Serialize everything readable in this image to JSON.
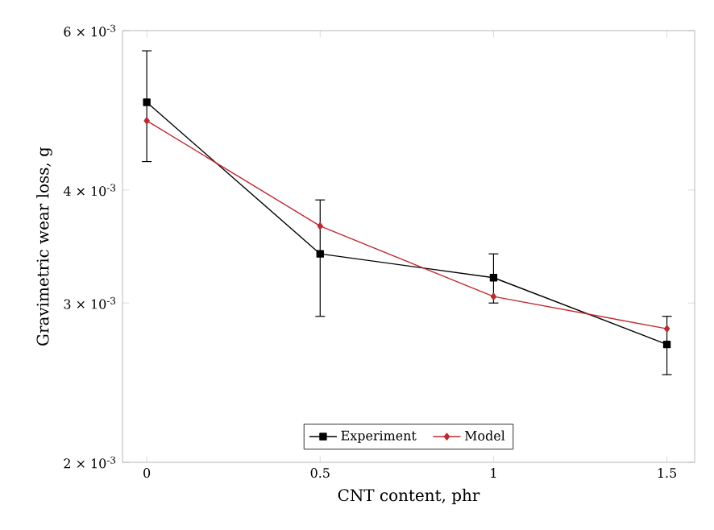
{
  "chart_data": {
    "type": "line",
    "xlabel": "CNT content, phr",
    "ylabel": "Gravimetric wear loss, g",
    "log": "y",
    "legend": "bottom",
    "grid": false,
    "xlim": [
      -0.07,
      1.58
    ],
    "xticks": [
      0,
      0.5,
      1,
      1.5
    ],
    "ylim": [
      0.002,
      0.006
    ],
    "yticks": [
      {
        "value": 0.002,
        "label": "2 × 10$^{-3}$"
      },
      {
        "value": 0.003,
        "label": "3 × 10$^{-3}$"
      },
      {
        "value": 0.004,
        "label": "4 × 10$^{-3}$"
      },
      {
        "value": 0.006,
        "label": "6 × 10$^{-3}$"
      }
    ],
    "series": [
      {
        "name": "Experiment",
        "color": "#000000",
        "marker": "square",
        "x": [
          0,
          0.5,
          1,
          1.5
        ],
        "values": [
          0.005,
          0.0034,
          0.0032,
          0.0027
        ],
        "errors": [
          [
            0.0043,
            0.0057
          ],
          [
            0.0029,
            0.0039
          ],
          [
            0.003,
            0.0034
          ],
          [
            0.0025,
            0.0029
          ]
        ]
      },
      {
        "name": "Model",
        "color": "#c0282d",
        "marker": "diamond",
        "x": [
          0,
          0.5,
          1,
          1.5
        ],
        "values": [
          0.00477,
          0.00365,
          0.00305,
          0.00281
        ]
      }
    ]
  }
}
